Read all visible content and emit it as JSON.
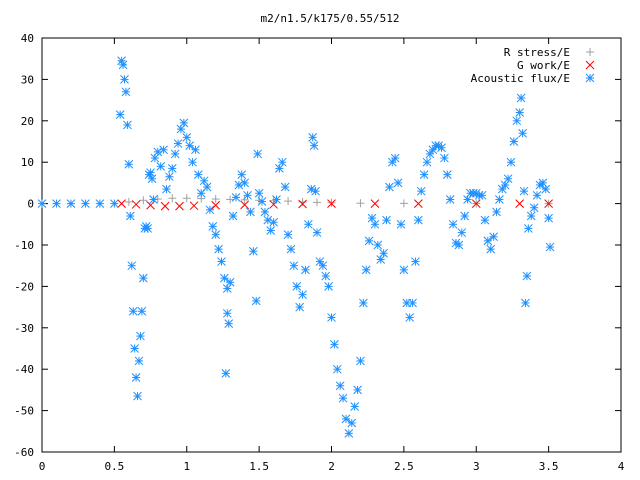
{
  "chart_data": {
    "type": "scatter",
    "title": "m2/n1.5/k175/0.55/512",
    "xlabel": "",
    "ylabel": "",
    "xlim": [
      0,
      4
    ],
    "ylim": [
      -60,
      40
    ],
    "x_ticks": [
      "0",
      "0.5",
      "1",
      "1.5",
      "2",
      "2.5",
      "3",
      "3.5",
      "4"
    ],
    "y_ticks": [
      "40",
      "30",
      "20",
      "10",
      "0",
      "-10",
      "-20",
      "-30",
      "-40",
      "-50",
      "-60"
    ],
    "legend_position": "top-right",
    "grid": false,
    "series": [
      {
        "name": "R stress/E",
        "marker": "plus",
        "color": "#a0a0a0",
        "points": [
          [
            0.6,
            0.4
          ],
          [
            0.7,
            0.8
          ],
          [
            0.8,
            1.1
          ],
          [
            0.9,
            1.3
          ],
          [
            1.0,
            1.3
          ],
          [
            1.1,
            1.2
          ],
          [
            1.2,
            1.1
          ],
          [
            1.3,
            1.0
          ],
          [
            1.4,
            0.9
          ],
          [
            1.5,
            0.8
          ],
          [
            1.6,
            0.7
          ],
          [
            1.7,
            0.6
          ],
          [
            1.8,
            0.4
          ],
          [
            1.9,
            0.3
          ],
          [
            2.0,
            0.2
          ],
          [
            2.2,
            0.1
          ],
          [
            2.5,
            0.05
          ],
          [
            3.0,
            0.02
          ],
          [
            3.5,
            0.0
          ]
        ]
      },
      {
        "name": "G work/E",
        "marker": "cross",
        "color": "#ff0000",
        "points": [
          [
            0.55,
            0.0
          ],
          [
            0.65,
            -0.2
          ],
          [
            0.75,
            -0.4
          ],
          [
            0.85,
            -0.6
          ],
          [
            0.95,
            -0.6
          ],
          [
            1.05,
            -0.5
          ],
          [
            1.2,
            -0.4
          ],
          [
            1.4,
            -0.3
          ],
          [
            1.6,
            -0.2
          ],
          [
            1.8,
            -0.1
          ],
          [
            2.0,
            0.0
          ],
          [
            2.3,
            0.0
          ],
          [
            2.6,
            0.0
          ],
          [
            3.0,
            0.0
          ],
          [
            3.3,
            0.0
          ],
          [
            3.5,
            0.0
          ]
        ]
      },
      {
        "name": "Acoustic flux/E",
        "marker": "star",
        "color": "#1e90ff",
        "points": [
          [
            0.0,
            0.0
          ],
          [
            0.1,
            0.0
          ],
          [
            0.2,
            0.0
          ],
          [
            0.3,
            0.0
          ],
          [
            0.4,
            0.0
          ],
          [
            0.5,
            0.0
          ],
          [
            0.54,
            21.5
          ],
          [
            0.55,
            34.5
          ],
          [
            0.56,
            33.5
          ],
          [
            0.57,
            30.0
          ],
          [
            0.58,
            27.0
          ],
          [
            0.59,
            19.0
          ],
          [
            0.6,
            9.5
          ],
          [
            0.61,
            -3.0
          ],
          [
            0.62,
            -15.0
          ],
          [
            0.63,
            -26.0
          ],
          [
            0.64,
            -35.0
          ],
          [
            0.65,
            -42.0
          ],
          [
            0.66,
            -46.5
          ],
          [
            0.67,
            -38.0
          ],
          [
            0.68,
            -32.0
          ],
          [
            0.69,
            -26.0
          ],
          [
            0.7,
            -18.0
          ],
          [
            0.71,
            -6.0
          ],
          [
            0.72,
            -5.5
          ],
          [
            0.73,
            -6.0
          ],
          [
            0.74,
            7.0
          ],
          [
            0.75,
            7.5
          ],
          [
            0.76,
            6.0
          ],
          [
            0.77,
            1.0
          ],
          [
            0.78,
            11.0
          ],
          [
            0.8,
            12.5
          ],
          [
            0.82,
            9.0
          ],
          [
            0.84,
            13.0
          ],
          [
            0.86,
            3.5
          ],
          [
            0.88,
            6.5
          ],
          [
            0.9,
            8.5
          ],
          [
            0.92,
            12.0
          ],
          [
            0.94,
            14.5
          ],
          [
            0.96,
            18.0
          ],
          [
            0.98,
            19.5
          ],
          [
            1.0,
            16.0
          ],
          [
            1.02,
            14.0
          ],
          [
            1.04,
            10.0
          ],
          [
            1.06,
            13.0
          ],
          [
            1.08,
            7.0
          ],
          [
            1.1,
            2.5
          ],
          [
            1.12,
            5.5
          ],
          [
            1.14,
            4.0
          ],
          [
            1.16,
            -1.5
          ],
          [
            1.18,
            -5.5
          ],
          [
            1.2,
            -7.5
          ],
          [
            1.22,
            -11.0
          ],
          [
            1.24,
            -14.0
          ],
          [
            1.26,
            -18.0
          ],
          [
            1.28,
            -20.5
          ],
          [
            1.3,
            -19.0
          ],
          [
            1.27,
            -41.0
          ],
          [
            1.28,
            -26.5
          ],
          [
            1.29,
            -29.0
          ],
          [
            1.32,
            -3.0
          ],
          [
            1.34,
            1.5
          ],
          [
            1.36,
            4.5
          ],
          [
            1.38,
            7.0
          ],
          [
            1.4,
            5.0
          ],
          [
            1.42,
            2.0
          ],
          [
            1.44,
            -2.0
          ],
          [
            1.46,
            -11.5
          ],
          [
            1.48,
            -23.5
          ],
          [
            1.49,
            12.0
          ],
          [
            1.5,
            2.5
          ],
          [
            1.52,
            0.5
          ],
          [
            1.54,
            -2.0
          ],
          [
            1.56,
            -4.0
          ],
          [
            1.58,
            -6.5
          ],
          [
            1.6,
            -4.5
          ],
          [
            1.62,
            1.0
          ],
          [
            1.64,
            8.5
          ],
          [
            1.66,
            10.0
          ],
          [
            1.68,
            4.0
          ],
          [
            1.7,
            -7.5
          ],
          [
            1.72,
            -11.0
          ],
          [
            1.74,
            -15.0
          ],
          [
            1.76,
            -20.0
          ],
          [
            1.78,
            -25.0
          ],
          [
            1.8,
            -22.0
          ],
          [
            1.82,
            -16.0
          ],
          [
            1.84,
            -5.0
          ],
          [
            1.86,
            3.5
          ],
          [
            1.87,
            16.0
          ],
          [
            1.88,
            14.0
          ],
          [
            1.89,
            3.0
          ],
          [
            1.9,
            -7.0
          ],
          [
            1.92,
            -14.0
          ],
          [
            1.94,
            -15.0
          ],
          [
            1.96,
            -17.5
          ],
          [
            1.98,
            -20.0
          ],
          [
            2.0,
            -27.5
          ],
          [
            2.02,
            -34.0
          ],
          [
            2.04,
            -40.0
          ],
          [
            2.06,
            -44.0
          ],
          [
            2.08,
            -47.0
          ],
          [
            2.1,
            -52.0
          ],
          [
            2.12,
            -55.5
          ],
          [
            2.14,
            -53.0
          ],
          [
            2.16,
            -49.0
          ],
          [
            2.18,
            -45.0
          ],
          [
            2.2,
            -38.0
          ],
          [
            2.22,
            -24.0
          ],
          [
            2.24,
            -16.0
          ],
          [
            2.26,
            -9.0
          ],
          [
            2.28,
            -3.5
          ],
          [
            2.3,
            -5.0
          ],
          [
            2.32,
            -10.0
          ],
          [
            2.34,
            -13.5
          ],
          [
            2.36,
            -12.0
          ],
          [
            2.38,
            -4.0
          ],
          [
            2.4,
            4.0
          ],
          [
            2.42,
            10.0
          ],
          [
            2.44,
            11.0
          ],
          [
            2.46,
            5.0
          ],
          [
            2.48,
            -5.0
          ],
          [
            2.5,
            -16.0
          ],
          [
            2.52,
            -24.0
          ],
          [
            2.54,
            -27.5
          ],
          [
            2.56,
            -24.0
          ],
          [
            2.58,
            -14.0
          ],
          [
            2.6,
            -4.0
          ],
          [
            2.62,
            3.0
          ],
          [
            2.64,
            7.0
          ],
          [
            2.66,
            10.0
          ],
          [
            2.68,
            12.0
          ],
          [
            2.7,
            13.0
          ],
          [
            2.72,
            14.0
          ],
          [
            2.74,
            14.0
          ],
          [
            2.76,
            13.5
          ],
          [
            2.78,
            11.0
          ],
          [
            2.8,
            7.0
          ],
          [
            2.82,
            1.0
          ],
          [
            2.84,
            -5.0
          ],
          [
            2.86,
            -9.5
          ],
          [
            2.88,
            -10.0
          ],
          [
            2.9,
            -7.0
          ],
          [
            2.92,
            -3.0
          ],
          [
            2.94,
            1.0
          ],
          [
            2.96,
            2.5
          ],
          [
            2.98,
            2.5
          ],
          [
            3.0,
            2.5
          ],
          [
            3.02,
            2.0
          ],
          [
            3.04,
            2.0
          ],
          [
            3.06,
            -4.0
          ],
          [
            3.08,
            -9.0
          ],
          [
            3.1,
            -11.0
          ],
          [
            3.12,
            -8.0
          ],
          [
            3.14,
            -2.0
          ],
          [
            3.16,
            1.0
          ],
          [
            3.18,
            3.5
          ],
          [
            3.2,
            4.5
          ],
          [
            3.22,
            6.0
          ],
          [
            3.24,
            10.0
          ],
          [
            3.26,
            15.0
          ],
          [
            3.28,
            20.0
          ],
          [
            3.3,
            22.0
          ],
          [
            3.31,
            25.5
          ],
          [
            3.32,
            17.0
          ],
          [
            3.33,
            3.0
          ],
          [
            3.34,
            -24.0
          ],
          [
            3.35,
            -17.5
          ],
          [
            3.36,
            -6.0
          ],
          [
            3.38,
            -3.0
          ],
          [
            3.4,
            -1.0
          ],
          [
            3.42,
            2.0
          ],
          [
            3.44,
            4.5
          ],
          [
            3.46,
            5.0
          ],
          [
            3.48,
            3.5
          ],
          [
            3.5,
            -3.5
          ],
          [
            3.51,
            -10.5
          ]
        ]
      }
    ]
  }
}
